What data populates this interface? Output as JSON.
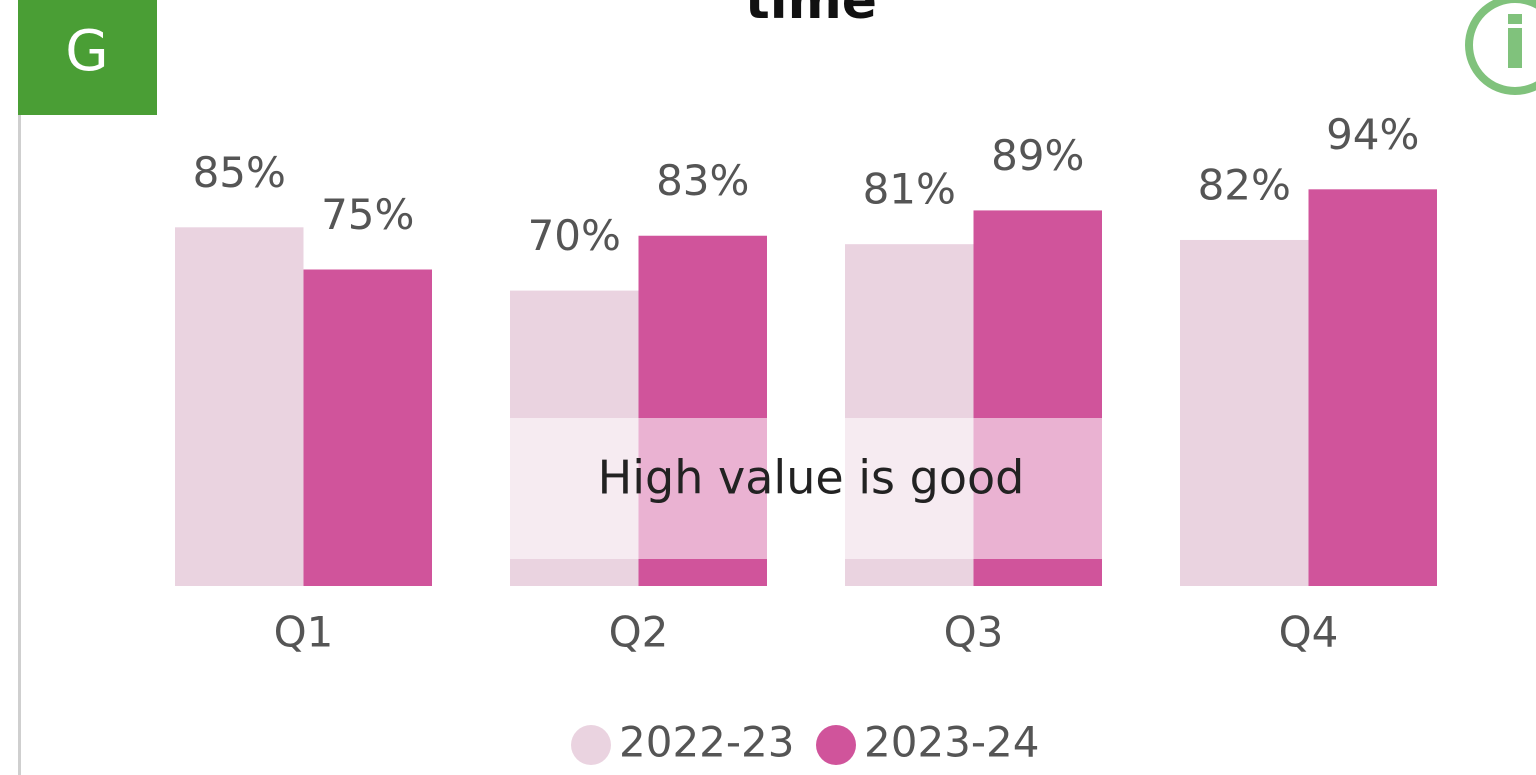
{
  "badge": "G",
  "chart_data": {
    "type": "bar",
    "title": "time",
    "categories": [
      "Q1",
      "Q2",
      "Q3",
      "Q4"
    ],
    "series": [
      {
        "name": "2022-23",
        "color": "#ead3e0",
        "values": [
          85,
          70,
          81,
          82
        ],
        "value_labels": [
          "85%",
          "70%",
          "81%",
          "82%"
        ]
      },
      {
        "name": "2023-24",
        "color": "#d0549b",
        "values": [
          75,
          83,
          89,
          94
        ],
        "value_labels": [
          "75%",
          "83%",
          "89%",
          "94%"
        ]
      }
    ],
    "ylim": [
      0,
      100
    ],
    "annotation": "High value is good"
  }
}
